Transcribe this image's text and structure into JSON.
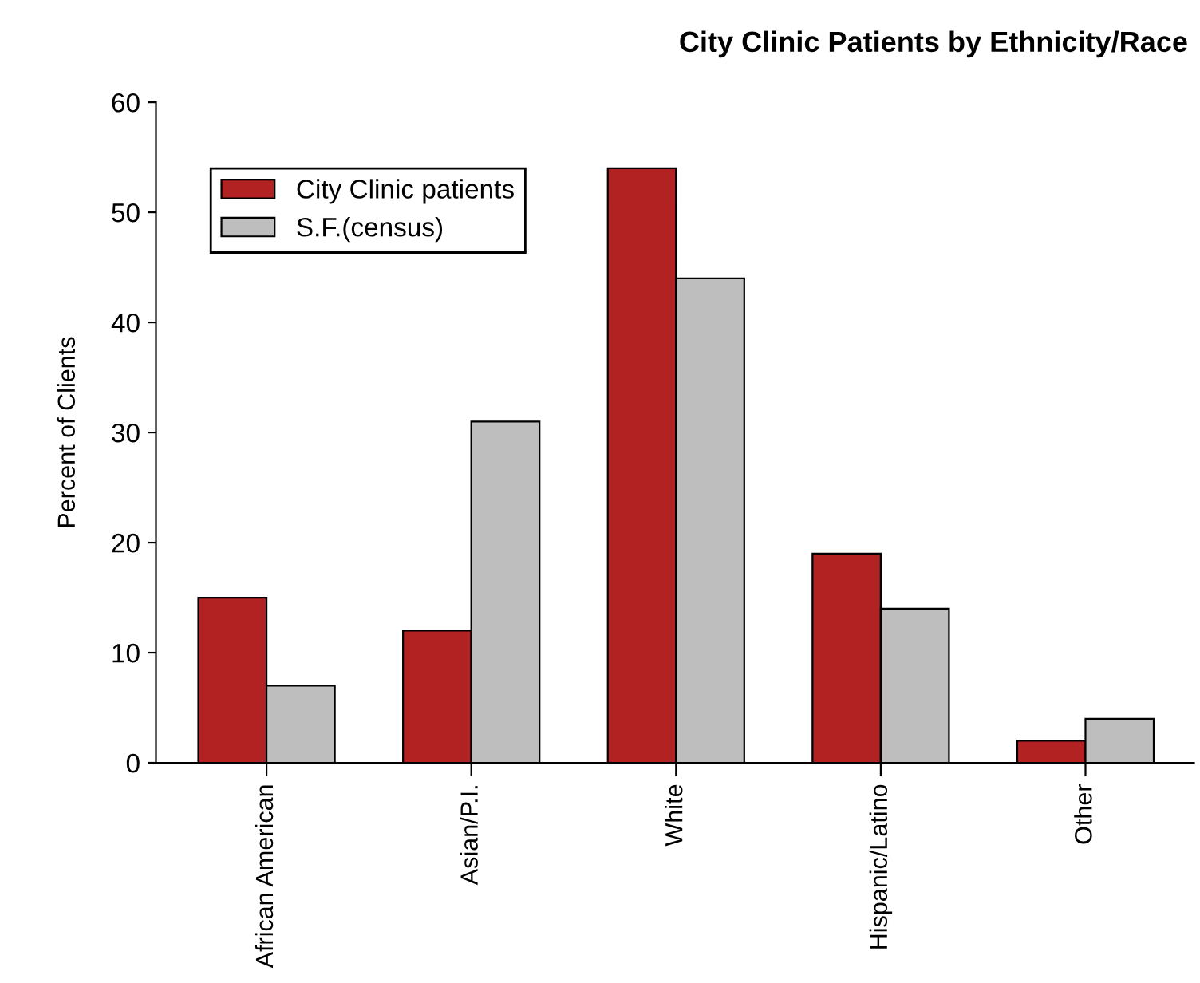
{
  "chart_data": {
    "type": "bar",
    "title": "City Clinic Patients by Ethnicity/Race",
    "ylabel": "Percent of Clients",
    "categories": [
      "African American",
      "Asian/P.I.",
      "White",
      "Hispanic/Latino",
      "Other"
    ],
    "series": [
      {
        "name": "City Clinic patients",
        "color": "#b22222",
        "values": [
          15,
          12,
          54,
          19,
          2
        ]
      },
      {
        "name": "S.F.(census)",
        "color": "#bebebe",
        "values": [
          7,
          31,
          44,
          14,
          4
        ]
      }
    ],
    "ylim": [
      0,
      60
    ],
    "yticks": [
      0,
      10,
      20,
      30,
      40,
      50,
      60
    ],
    "grid": false,
    "legend": "top left"
  }
}
